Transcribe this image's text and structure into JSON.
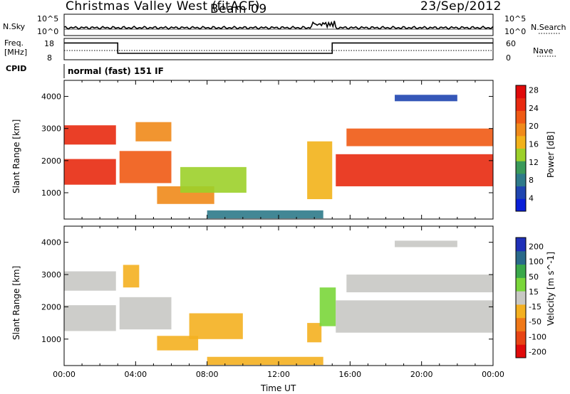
{
  "header": {
    "station": "Christmas Valley West (fitACF)",
    "beam": "Beam 09",
    "date": "23/Sep/2012"
  },
  "nsky_panel": {
    "left_label": "N.Sky",
    "left_ticks": [
      "10^5",
      "10^0"
    ],
    "right_label": "N.Search",
    "right_ticks": [
      "10^5",
      "10^0"
    ]
  },
  "freq_panel": {
    "left_label_line1": "Freq.",
    "left_label_line2": "[MHz]",
    "left_ticks": [
      "18",
      "8"
    ],
    "right_label": "Nave",
    "right_ticks": [
      "60",
      "0"
    ]
  },
  "cpid_panel": {
    "label": "CPID",
    "program": "normal (fast) 151 IF"
  },
  "chart_data": [
    {
      "type": "heatmap",
      "title": "",
      "ylabel": "Slant Range [km]",
      "xlabel": "",
      "x_ticks": [
        "00:00",
        "04:00",
        "08:00",
        "12:00",
        "16:00",
        "20:00",
        "00:00"
      ],
      "xlim_hours": [
        0,
        24
      ],
      "y_ticks": [
        1000,
        2000,
        3000,
        4000
      ],
      "ylim": [
        180,
        4500
      ],
      "colorbar": {
        "label": "Power [dB]",
        "ticks": [
          4,
          8,
          12,
          16,
          20,
          24,
          28
        ],
        "colors": [
          "#0a1fd8",
          "#1f45b0",
          "#2e7a8a",
          "#3a9a5a",
          "#9cd02a",
          "#f2b21a",
          "#f08a1a",
          "#f05a14",
          "#e82a10",
          "#e00a0a"
        ]
      },
      "regions": [
        {
          "t0": 0.0,
          "t1": 2.9,
          "r0": 1250,
          "r1": 2050,
          "v": 27
        },
        {
          "t0": 0.0,
          "t1": 2.9,
          "r0": 2500,
          "r1": 3100,
          "v": 26
        },
        {
          "t0": 3.1,
          "t1": 6.0,
          "r0": 1300,
          "r1": 2300,
          "v": 24
        },
        {
          "t0": 4.0,
          "t1": 6.0,
          "r0": 2600,
          "r1": 3200,
          "v": 20
        },
        {
          "t0": 5.2,
          "t1": 8.4,
          "r0": 650,
          "r1": 1200,
          "v": 22
        },
        {
          "t0": 6.5,
          "t1": 10.2,
          "r0": 1000,
          "r1": 1800,
          "v": 14
        },
        {
          "t0": 8.0,
          "t1": 14.5,
          "r0": 200,
          "r1": 450,
          "v": 9
        },
        {
          "t0": 13.6,
          "t1": 15.0,
          "r0": 800,
          "r1": 2600,
          "v": 18
        },
        {
          "t0": 15.2,
          "t1": 24.0,
          "r0": 1200,
          "r1": 2200,
          "v": 28
        },
        {
          "t0": 15.8,
          "t1": 24.0,
          "r0": 2450,
          "r1": 3000,
          "v": 24
        },
        {
          "t0": 18.5,
          "t1": 22.0,
          "r0": 3850,
          "r1": 4050,
          "v": 6
        }
      ]
    },
    {
      "type": "heatmap",
      "title": "",
      "ylabel": "Slant Range [km]",
      "xlabel": "Time UT",
      "x_ticks": [
        "00:00",
        "04:00",
        "08:00",
        "12:00",
        "16:00",
        "20:00",
        "00:00"
      ],
      "xlim_hours": [
        0,
        24
      ],
      "y_ticks": [
        1000,
        2000,
        3000,
        4000
      ],
      "ylim": [
        180,
        4500
      ],
      "colorbar": {
        "label": "Velocity [m s^-1]",
        "ticks": [
          200,
          100,
          50,
          15,
          -15,
          -50,
          -100,
          -200
        ],
        "colors": [
          "#1f30b8",
          "#2a6a8a",
          "#3aa84a",
          "#7ad63a",
          "#c8c8c4",
          "#f4b020",
          "#f07818",
          "#e84414",
          "#e00a0a"
        ]
      },
      "regions": [
        {
          "t0": 0.0,
          "t1": 2.9,
          "r0": 1250,
          "r1": 2050,
          "v": 0
        },
        {
          "t0": 0.0,
          "t1": 2.9,
          "r0": 2500,
          "r1": 3100,
          "v": 0
        },
        {
          "t0": 3.1,
          "t1": 6.0,
          "r0": 1300,
          "r1": 2300,
          "v": 0
        },
        {
          "t0": 3.3,
          "t1": 4.2,
          "r0": 2600,
          "r1": 3300,
          "v": -40
        },
        {
          "t0": 5.2,
          "t1": 7.5,
          "r0": 650,
          "r1": 1100,
          "v": -40
        },
        {
          "t0": 7.0,
          "t1": 10.0,
          "r0": 1000,
          "r1": 1800,
          "v": -40
        },
        {
          "t0": 8.0,
          "t1": 14.5,
          "r0": 200,
          "r1": 450,
          "v": -50
        },
        {
          "t0": 13.6,
          "t1": 14.4,
          "r0": 900,
          "r1": 1500,
          "v": -40
        },
        {
          "t0": 14.3,
          "t1": 15.2,
          "r0": 1400,
          "r1": 2600,
          "v": 30
        },
        {
          "t0": 15.2,
          "t1": 24.0,
          "r0": 1200,
          "r1": 2200,
          "v": 0
        },
        {
          "t0": 15.8,
          "t1": 24.0,
          "r0": 2450,
          "r1": 3000,
          "v": 0
        },
        {
          "t0": 18.5,
          "t1": 22.0,
          "r0": 3850,
          "r1": 4050,
          "v": 0
        }
      ]
    }
  ]
}
